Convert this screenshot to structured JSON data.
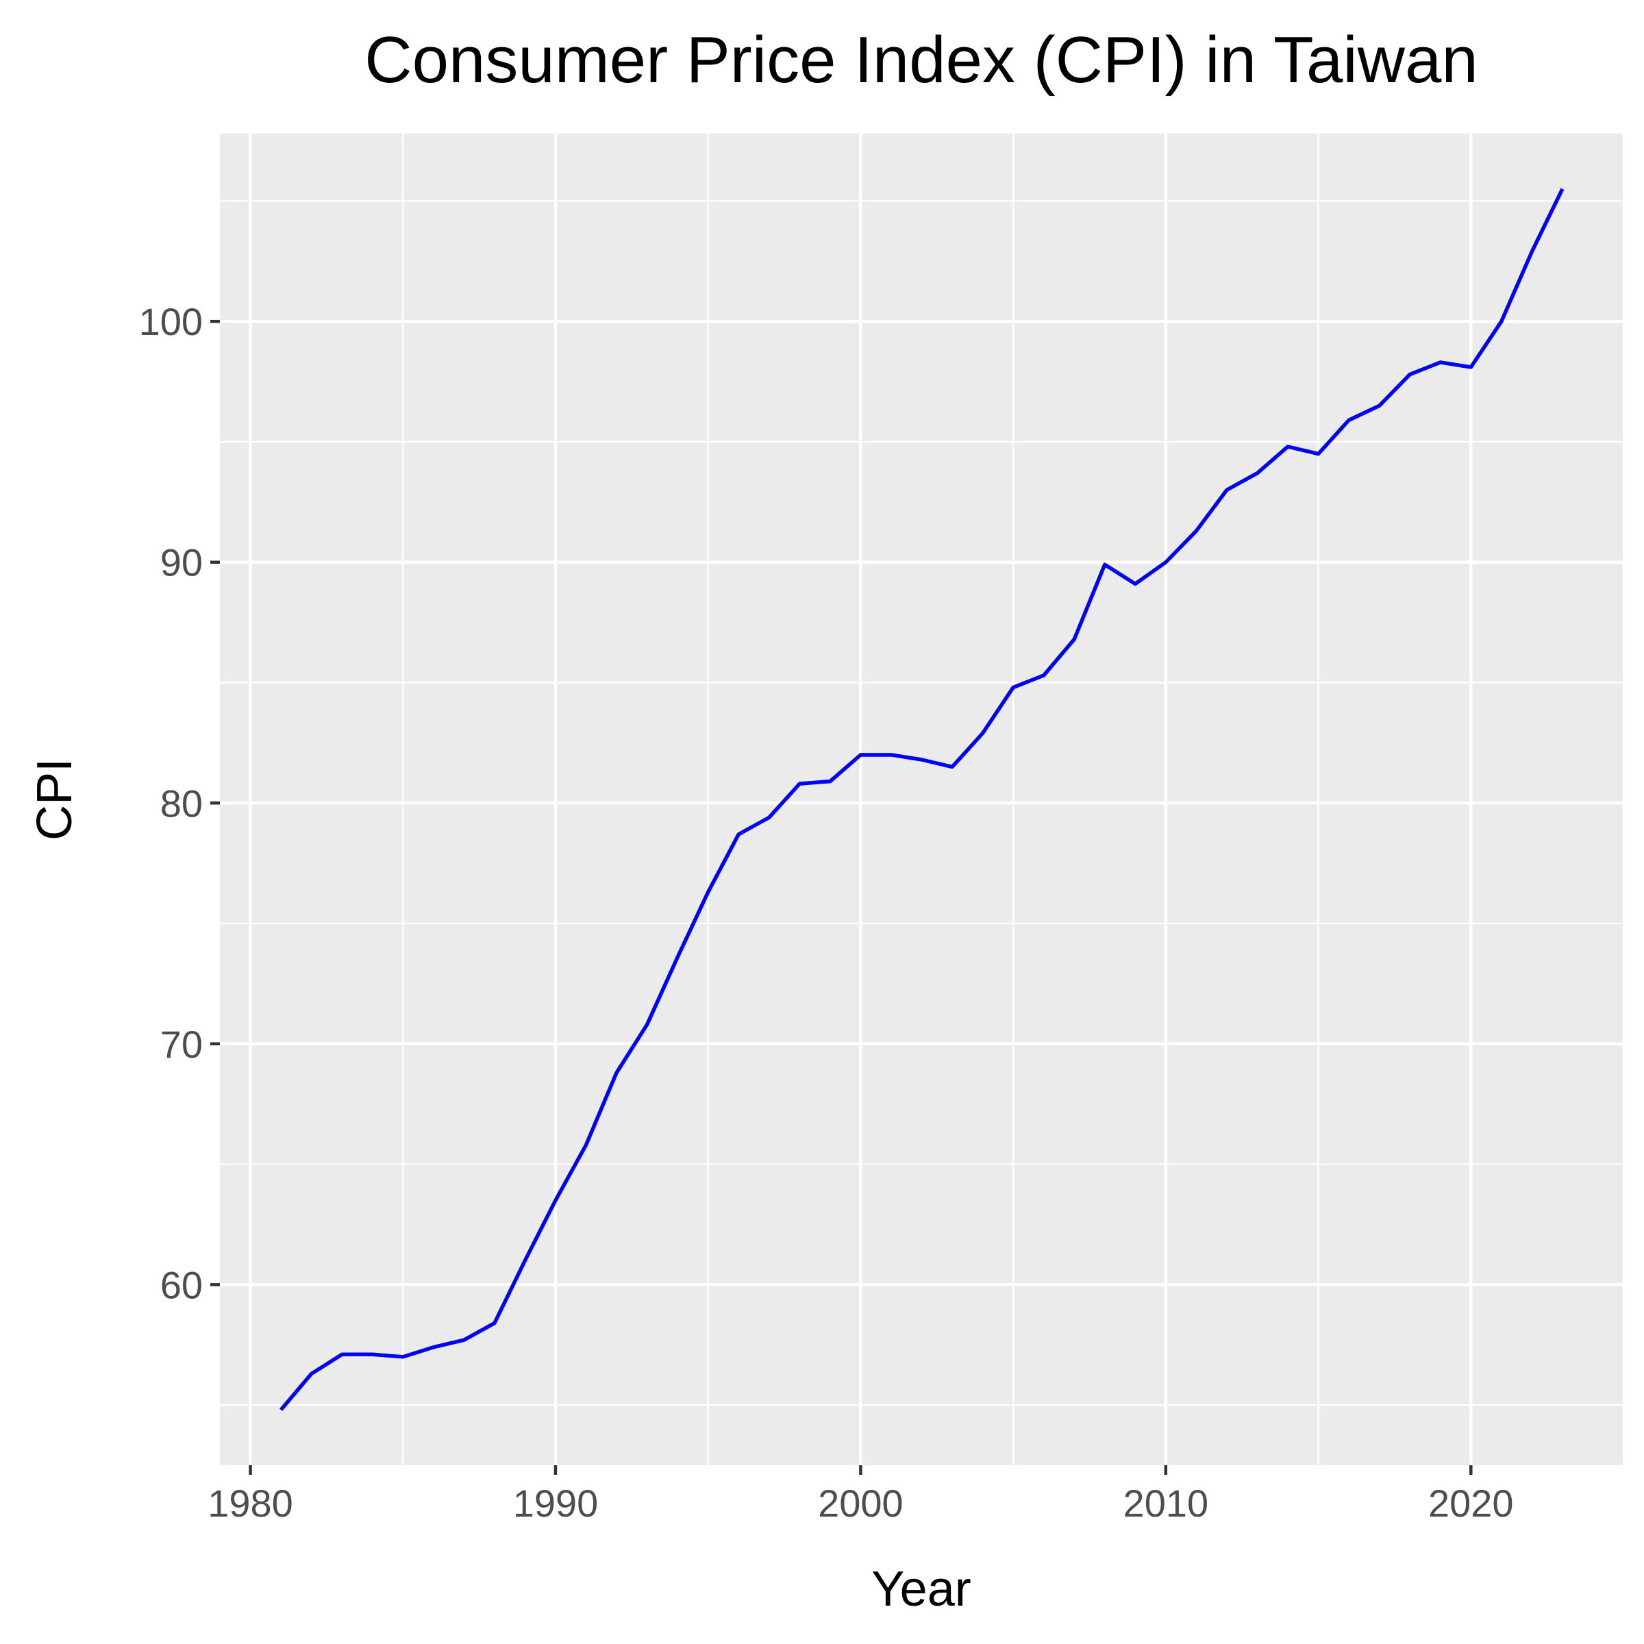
{
  "chart_data": {
    "type": "line",
    "title": "Consumer Price Index (CPI) in Taiwan",
    "xlabel": "Year",
    "ylabel": "CPI",
    "xlim": [
      1979,
      2025
    ],
    "ylim": [
      52.5,
      107.8
    ],
    "x_ticks": [
      1980,
      1990,
      2000,
      2010,
      2020
    ],
    "y_ticks": [
      60,
      70,
      80,
      90,
      100
    ],
    "grid": true,
    "legend": "none",
    "colors": {
      "line": "#0000ff",
      "panel": "#ebebeb",
      "grid": "#ffffff",
      "tick_text": "#4d4d4d",
      "tick_mark": "#333333"
    },
    "series": [
      {
        "x": [
          1981,
          1982,
          1983,
          1984,
          1985,
          1986,
          1987,
          1988,
          1989,
          1990,
          1991,
          1992,
          1993,
          1994,
          1995,
          1996,
          1997,
          1998,
          1999,
          2000,
          2001,
          2002,
          2003,
          2004,
          2005,
          2006,
          2007,
          2008,
          2009,
          2010,
          2011,
          2012,
          2013,
          2014,
          2015,
          2016,
          2017,
          2018,
          2019,
          2020,
          2021,
          2022,
          2023
        ],
        "y": [
          54.8,
          56.3,
          57.1,
          57.1,
          57.0,
          57.4,
          57.7,
          58.4,
          61.0,
          63.5,
          65.8,
          68.8,
          70.8,
          73.6,
          76.3,
          78.7,
          79.4,
          80.8,
          80.9,
          82.0,
          82.0,
          81.8,
          81.5,
          82.9,
          84.8,
          85.3,
          86.8,
          89.9,
          89.1,
          90.0,
          91.3,
          93.0,
          93.7,
          94.8,
          94.5,
          95.9,
          96.5,
          97.8,
          98.3,
          98.1,
          100.0,
          102.9,
          105.5
        ]
      }
    ]
  }
}
